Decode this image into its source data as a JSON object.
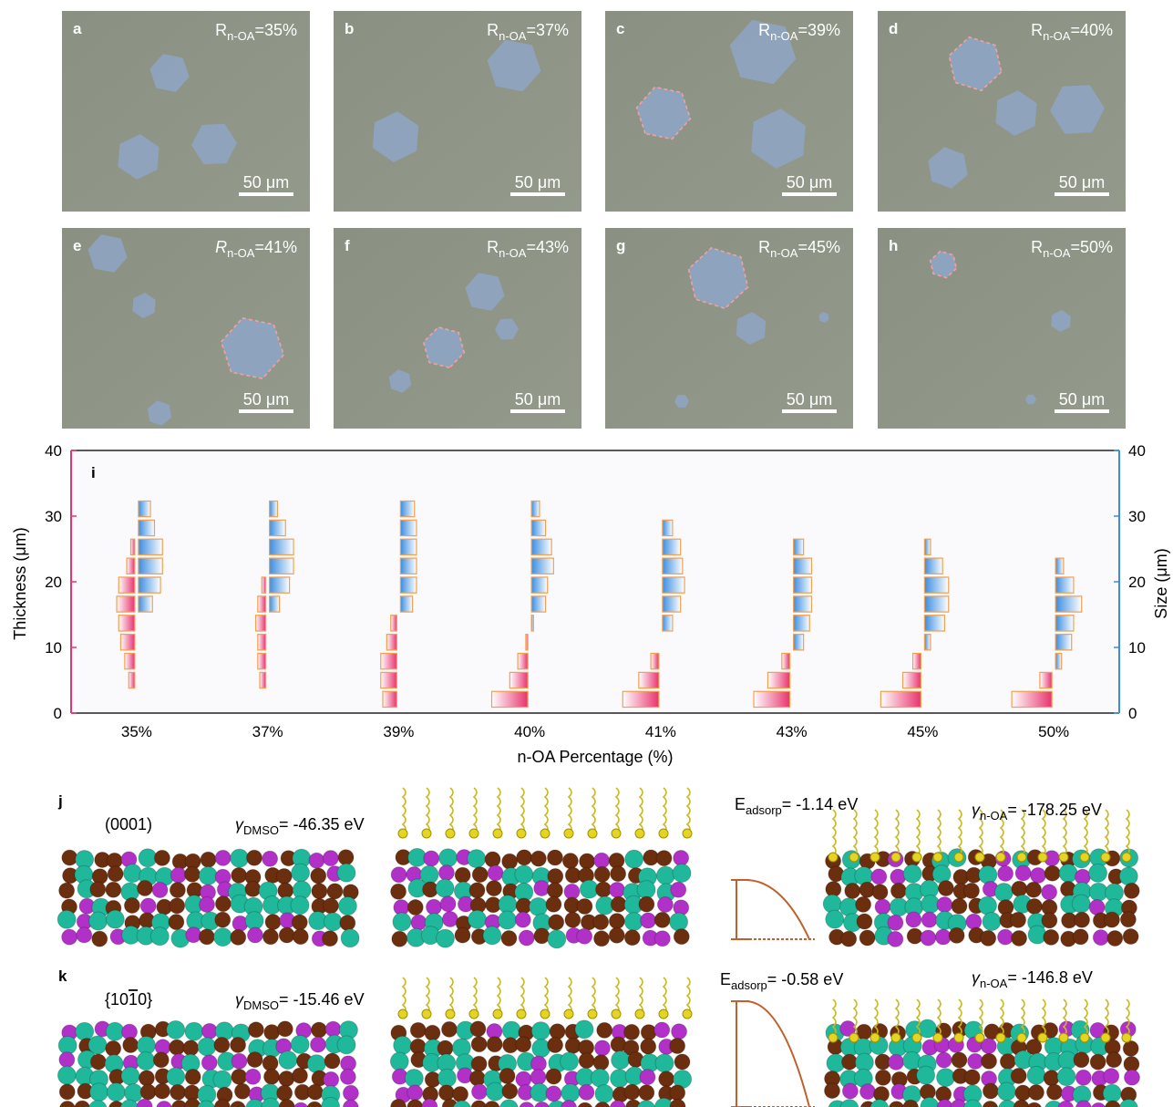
{
  "micrographs": [
    {
      "letter": "a",
      "r_symbol": "R",
      "r_sub": "n-OA",
      "r_value": "=35%",
      "scale_bar": "50 μm"
    },
    {
      "letter": "b",
      "r_symbol": "R",
      "r_sub": "n-OA",
      "r_value": "=37%",
      "scale_bar": "50 μm"
    },
    {
      "letter": "c",
      "r_symbol": "R",
      "r_sub": "n-OA",
      "r_value": "=39%",
      "scale_bar": "50 μm"
    },
    {
      "letter": "d",
      "r_symbol": "R",
      "r_sub": "n-OA",
      "r_value": "=40%",
      "scale_bar": "50 μm"
    },
    {
      "letter": "e",
      "r_symbol": "R",
      "r_sub": "n-OA",
      "r_value": "=41%",
      "scale_bar": "50 μm",
      "italic": true
    },
    {
      "letter": "f",
      "r_symbol": "R",
      "r_sub": "n-OA",
      "r_value": "=43%",
      "scale_bar": "50 μm"
    },
    {
      "letter": "g",
      "r_symbol": "R",
      "r_sub": "n-OA",
      "r_value": "=45%",
      "scale_bar": "50 μm"
    },
    {
      "letter": "h",
      "r_symbol": "R",
      "r_sub": "n-OA",
      "r_value": "=50%",
      "scale_bar": "50 μm"
    }
  ],
  "chart_data": {
    "type": "butterfly",
    "panel": "i",
    "categories": [
      "35%",
      "37%",
      "39%",
      "40%",
      "41%",
      "43%",
      "45%",
      "50%"
    ],
    "xlabel": "n-OA Percentage (%)",
    "ylabel": "Thickness (μm)",
    "y2label": "Size (μm)",
    "ylim": [
      0,
      40
    ],
    "yticks": [
      0,
      10,
      20,
      30,
      40
    ],
    "y2lim": [
      0,
      40
    ],
    "y2ticks": [
      0,
      10,
      20,
      30,
      40
    ],
    "bins": [
      2.1,
      5.0,
      7.9,
      10.8,
      13.7,
      16.6,
      19.5,
      22.4,
      25.3,
      28.2,
      31.1
    ],
    "thickness": {
      "color": "#e8336d",
      "values": [
        [
          null,
          3,
          5,
          7,
          8,
          9,
          8,
          4,
          2,
          null,
          null
        ],
        [
          null,
          3,
          4,
          4,
          5,
          4,
          2,
          null,
          null,
          null,
          null
        ],
        [
          7,
          8,
          8,
          5,
          3,
          null,
          null,
          null,
          null,
          null,
          null
        ],
        [
          18,
          9,
          5,
          1,
          null,
          null,
          null,
          null,
          null,
          null,
          null
        ],
        [
          18,
          10,
          4,
          null,
          null,
          null,
          null,
          null,
          null,
          null,
          null
        ],
        [
          18,
          11,
          4,
          null,
          null,
          null,
          null,
          null,
          null,
          null,
          null
        ],
        [
          20,
          9,
          4,
          null,
          null,
          null,
          null,
          null,
          null,
          null,
          null
        ],
        [
          20,
          6,
          null,
          null,
          null,
          null,
          null,
          null,
          null,
          null,
          null
        ]
      ]
    },
    "size": {
      "color": "#3b8de0",
      "axis": "y2",
      "values": [
        [
          null,
          null,
          null,
          null,
          null,
          7,
          11,
          12,
          12,
          8,
          6
        ],
        [
          null,
          null,
          null,
          null,
          null,
          5,
          10,
          12,
          12,
          8,
          4
        ],
        [
          null,
          null,
          null,
          null,
          null,
          6,
          8,
          8,
          8,
          8,
          7
        ],
        [
          null,
          null,
          null,
          null,
          1,
          7,
          8,
          11,
          10,
          7,
          4
        ],
        [
          null,
          null,
          null,
          null,
          5,
          9,
          11,
          10,
          9,
          5,
          null
        ],
        [
          null,
          null,
          null,
          5,
          8,
          9,
          9,
          9,
          5,
          null,
          null
        ],
        [
          null,
          null,
          null,
          3,
          10,
          12,
          12,
          9,
          3,
          null,
          null
        ],
        [
          null,
          null,
          3,
          8,
          9,
          13,
          9,
          4,
          null,
          null,
          null
        ]
      ]
    }
  },
  "models": [
    {
      "letter": "j",
      "facet": [
        "(0001)"
      ],
      "gamma_symbol": "γ",
      "gamma_dmso_sub": "DMSO",
      "gamma_dmso_value": "= -46.35 eV",
      "e_symbol": "E",
      "e_sub": "adsorp",
      "e_value": "= -1.14 eV",
      "gamma_noa_sub": "n-OA",
      "gamma_noa_value": "= -178.25 eV"
    },
    {
      "letter": "k",
      "facet": [
        "{10",
        "1",
        "0}"
      ],
      "facet_overline": 1,
      "gamma_symbol": "γ",
      "gamma_dmso_sub": "DMSO",
      "gamma_dmso_value": "= -15.46 eV",
      "e_symbol": "E",
      "e_sub": "adsorp",
      "e_value": "= -0.58 eV",
      "gamma_noa_sub": "n-OA",
      "gamma_noa_value": "= -146.8 eV"
    }
  ]
}
